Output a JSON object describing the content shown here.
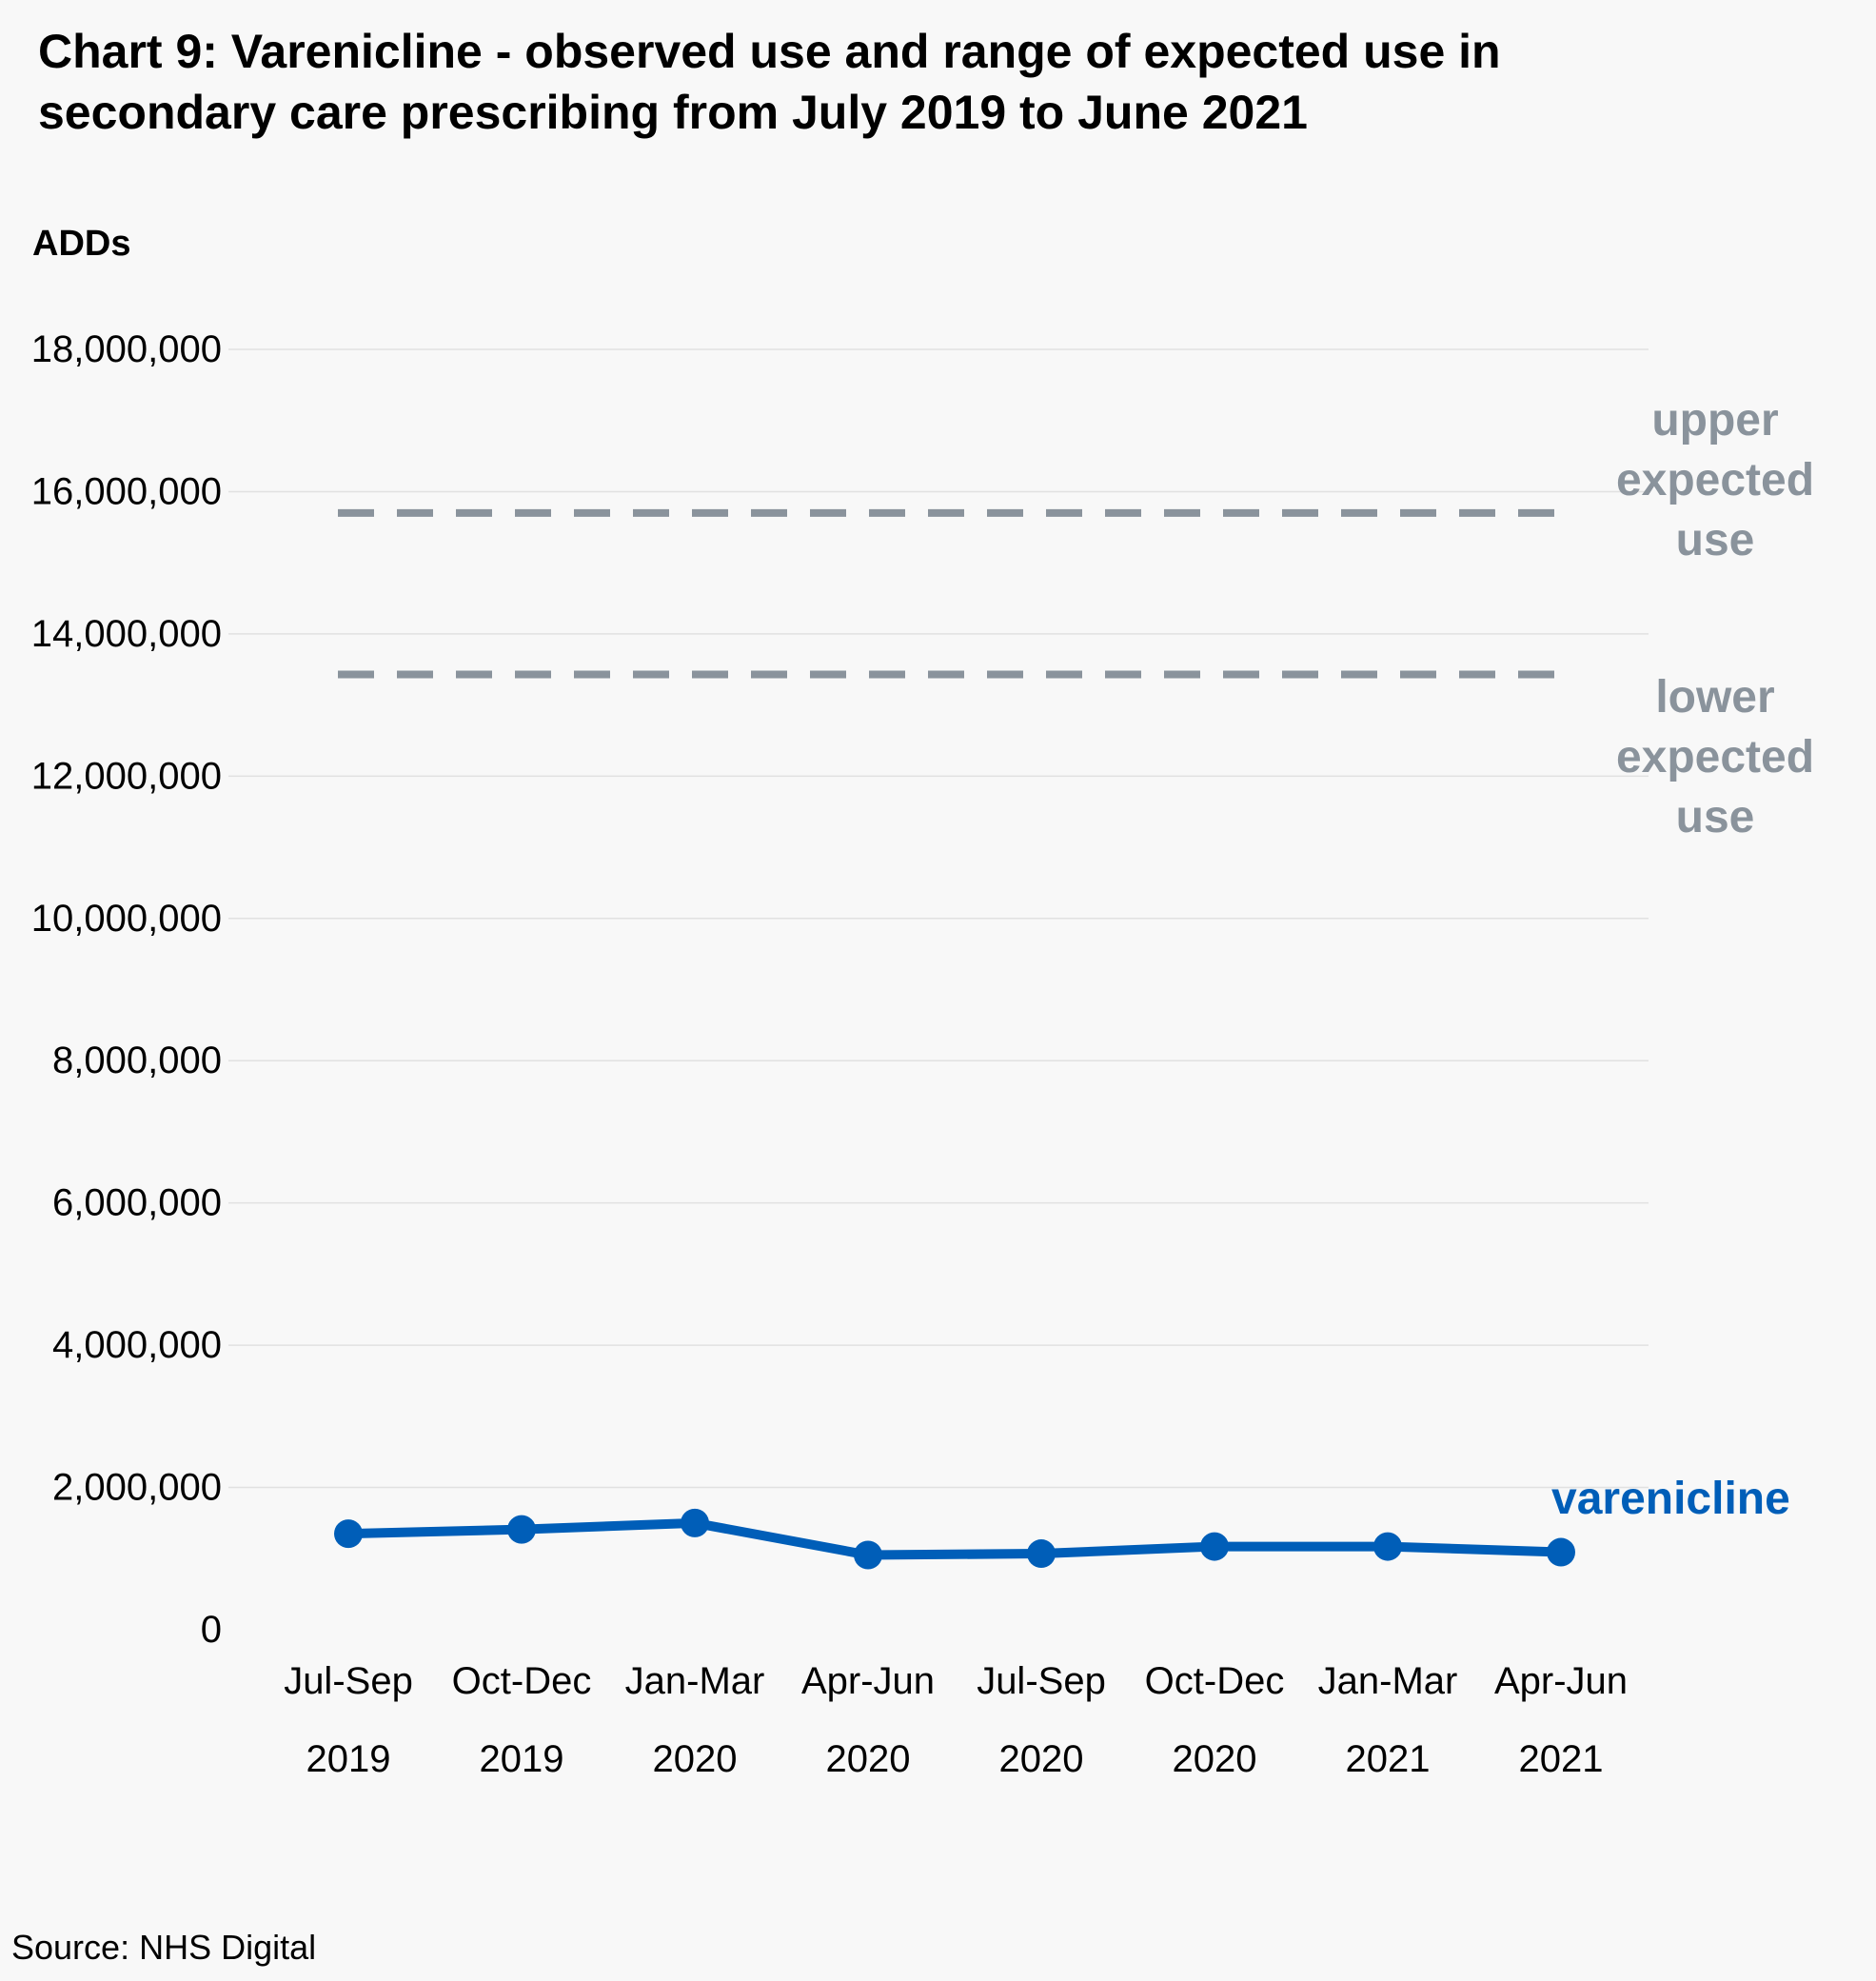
{
  "title_lines": [
    "Chart 9: Varenicline - observed use and range of expected use in",
    "secondary care prescribing from July 2019 to June 2021"
  ],
  "source": "Source: NHS Digital",
  "colors": {
    "series": "#005eb8",
    "expected": "#8a939c",
    "grid": "#e1e1e1",
    "background": "#f8f8f8"
  },
  "chart_data": {
    "type": "line",
    "ylabel": "ADDs",
    "ylim": [
      0,
      18000000
    ],
    "yticks": [
      0,
      2000000,
      4000000,
      6000000,
      8000000,
      10000000,
      12000000,
      14000000,
      16000000,
      18000000
    ],
    "ytick_labels": [
      "0",
      "2,000,000",
      "4,000,000",
      "6,000,000",
      "8,000,000",
      "10,000,000",
      "12,000,000",
      "14,000,000",
      "16,000,000",
      "18,000,000"
    ],
    "grid": true,
    "categories": [
      [
        "Jul-Sep",
        "2019"
      ],
      [
        "Oct-Dec",
        "2019"
      ],
      [
        "Jan-Mar",
        "2020"
      ],
      [
        "Apr-Jun",
        "2020"
      ],
      [
        "Jul-Sep",
        "2020"
      ],
      [
        "Oct-Dec",
        "2020"
      ],
      [
        "Jan-Mar",
        "2021"
      ],
      [
        "Apr-Jun",
        "2021"
      ]
    ],
    "series": [
      {
        "name": "varenicline",
        "style": "solid-markers",
        "values": [
          1350000,
          1410000,
          1500000,
          1050000,
          1070000,
          1170000,
          1170000,
          1090000
        ]
      }
    ],
    "reference_lines": [
      {
        "name_lines": [
          "upper",
          "expected",
          "use"
        ],
        "value": 15700000,
        "style": "dashed"
      },
      {
        "name_lines": [
          "lower",
          "expected",
          "use"
        ],
        "value": 13430000,
        "style": "dashed"
      }
    ]
  }
}
